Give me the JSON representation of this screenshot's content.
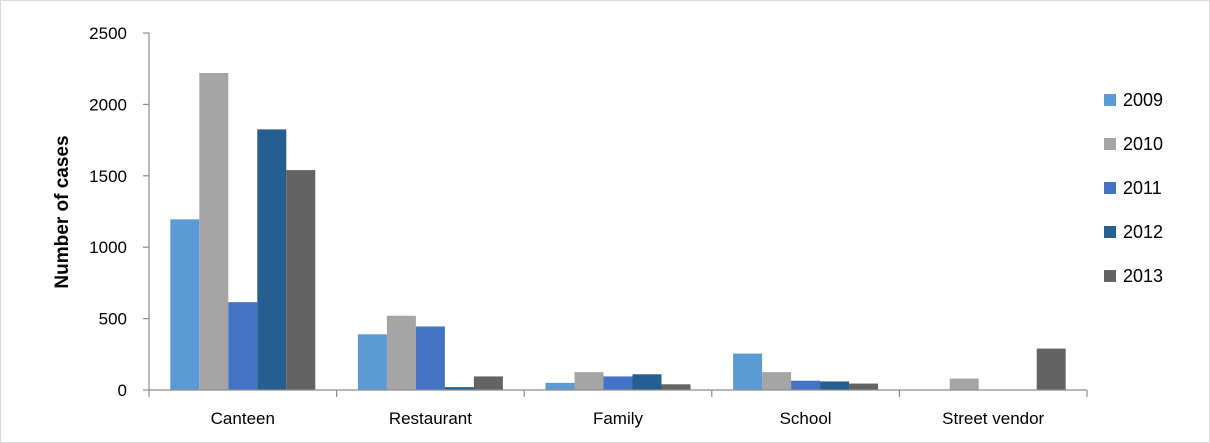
{
  "chart_data": {
    "type": "bar",
    "title": "",
    "xlabel": "",
    "ylabel": "Number of cases",
    "ylim": [
      0,
      2500
    ],
    "yticks": [
      0,
      500,
      1000,
      1500,
      2000,
      2500
    ],
    "grid": false,
    "legend_position": "right",
    "categories": [
      "Canteen",
      "Restaurant",
      "Family",
      "School",
      "Street vendor"
    ],
    "series": [
      {
        "name": "2009",
        "color": "#5b9bd5",
        "values": [
          1195,
          390,
          50,
          255,
          0
        ]
      },
      {
        "name": "2010",
        "color": "#a5a5a5",
        "values": [
          2220,
          520,
          125,
          125,
          80
        ]
      },
      {
        "name": "2011",
        "color": "#4472c4",
        "values": [
          615,
          445,
          95,
          65,
          0
        ]
      },
      {
        "name": "2012",
        "color": "#255e91",
        "values": [
          1825,
          20,
          110,
          60,
          0
        ]
      },
      {
        "name": "2013",
        "color": "#636363",
        "values": [
          1540,
          95,
          40,
          45,
          290
        ]
      }
    ]
  }
}
